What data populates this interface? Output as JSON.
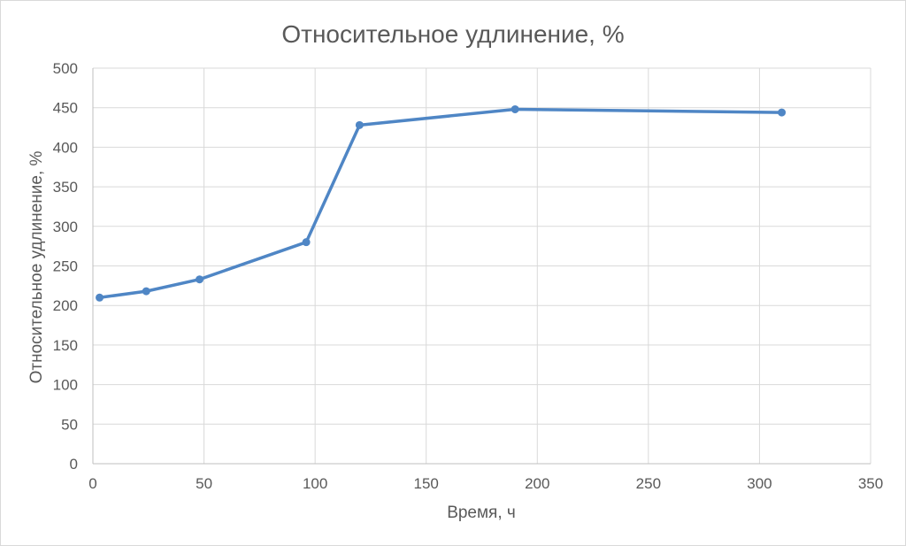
{
  "chart": {
    "title": "Относительное удлинение, %",
    "y_axis_title": "Относительное удлинение, %",
    "x_axis_title": "Время, ч"
  },
  "colors": {
    "series": "#4f86c5",
    "gridline": "#d9d9d9",
    "axis_line": "#bfbfbf",
    "text": "#595959",
    "background": "#ffffff",
    "frame_border": "#d9d9d9"
  },
  "chart_data": {
    "type": "line",
    "title": "Относительное удлинение, %",
    "xlabel": "Время, ч",
    "ylabel": "Относительное удлинение, %",
    "x": [
      3,
      24,
      48,
      96,
      120,
      190,
      310
    ],
    "values": [
      210,
      218,
      233,
      280,
      428,
      448,
      444
    ],
    "xlim": [
      0,
      350
    ],
    "ylim": [
      0,
      500
    ],
    "x_ticks": [
      0,
      50,
      100,
      150,
      200,
      250,
      300,
      350
    ],
    "y_ticks": [
      0,
      50,
      100,
      150,
      200,
      250,
      300,
      350,
      400,
      450,
      500
    ],
    "grid": true,
    "legend": false,
    "marker": "circle",
    "series_color": "#4f86c5"
  }
}
